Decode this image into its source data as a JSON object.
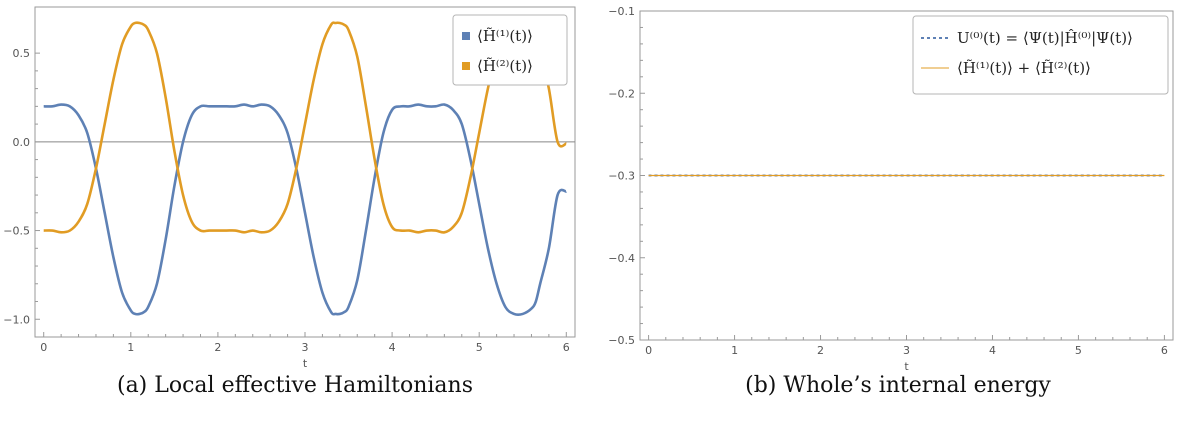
{
  "colors": {
    "series1": "#5E81B5",
    "series2": "#E19C24",
    "frame": "#9a9a9a",
    "zero": "#888888"
  },
  "chart_data": [
    {
      "type": "line",
      "caption": "(a) Local effective Hamiltonians",
      "xlabel": "t",
      "ylabel": "",
      "xlim": [
        -0.1,
        6.1
      ],
      "ylim": [
        -1.1,
        0.76
      ],
      "xticks": [
        0,
        1,
        2,
        3,
        4,
        5,
        6
      ],
      "xtick_labels": [
        "0",
        "1",
        "2",
        "3",
        "4",
        "5",
        "6"
      ],
      "yticks": [
        -1.0,
        -0.5,
        0.0,
        0.5
      ],
      "ytick_labels": [
        "−1.0",
        "−0.5",
        "0.0",
        "0.5"
      ],
      "zero_line": true,
      "legend_position": "top-right",
      "legend_style": "swatch",
      "series": [
        {
          "name": "⟨H̃⁽¹⁾(t)⟩",
          "color": "#5E81B5",
          "x": [
            0,
            0.1,
            0.2,
            0.3,
            0.4,
            0.5,
            0.6,
            0.7,
            0.8,
            0.9,
            1.0,
            1.05,
            1.1,
            1.15,
            1.2,
            1.3,
            1.4,
            1.5,
            1.6,
            1.7,
            1.8,
            1.9,
            2.0,
            2.1,
            2.2,
            2.3,
            2.4,
            2.5,
            2.6,
            2.7,
            2.8,
            2.9,
            3.0,
            3.1,
            3.2,
            3.3,
            3.35,
            3.4,
            3.45,
            3.5,
            3.6,
            3.7,
            3.8,
            3.9,
            4.0,
            4.1,
            4.2,
            4.3,
            4.4,
            4.5,
            4.6,
            4.7,
            4.8,
            4.9,
            5.0,
            5.1,
            5.2,
            5.3,
            5.4,
            5.5,
            5.6,
            5.65,
            5.7,
            5.8,
            5.9,
            6.0
          ],
          "y": [
            0.2,
            0.2,
            0.21,
            0.2,
            0.15,
            0.05,
            -0.15,
            -0.4,
            -0.65,
            -0.85,
            -0.95,
            -0.97,
            -0.97,
            -0.96,
            -0.93,
            -0.8,
            -0.55,
            -0.25,
            0.0,
            0.15,
            0.2,
            0.2,
            0.2,
            0.2,
            0.2,
            0.21,
            0.2,
            0.21,
            0.2,
            0.15,
            0.05,
            -0.15,
            -0.4,
            -0.65,
            -0.85,
            -0.96,
            -0.97,
            -0.97,
            -0.96,
            -0.93,
            -0.78,
            -0.5,
            -0.2,
            0.05,
            0.18,
            0.2,
            0.2,
            0.21,
            0.2,
            0.2,
            0.21,
            0.18,
            0.1,
            -0.1,
            -0.35,
            -0.6,
            -0.8,
            -0.93,
            -0.97,
            -0.97,
            -0.94,
            -0.9,
            -0.8,
            -0.6,
            -0.3,
            -0.28
          ]
        },
        {
          "name": "⟨H̃⁽²⁾(t)⟩",
          "color": "#E19C24",
          "x": [
            0,
            0.1,
            0.2,
            0.3,
            0.4,
            0.5,
            0.6,
            0.7,
            0.8,
            0.9,
            1.0,
            1.05,
            1.1,
            1.15,
            1.2,
            1.3,
            1.4,
            1.5,
            1.6,
            1.7,
            1.8,
            1.9,
            2.0,
            2.1,
            2.2,
            2.3,
            2.4,
            2.5,
            2.6,
            2.7,
            2.8,
            2.9,
            3.0,
            3.1,
            3.2,
            3.3,
            3.35,
            3.4,
            3.45,
            3.5,
            3.6,
            3.7,
            3.8,
            3.9,
            4.0,
            4.1,
            4.2,
            4.3,
            4.4,
            4.5,
            4.6,
            4.7,
            4.8,
            4.9,
            5.0,
            5.1,
            5.2,
            5.3,
            5.4,
            5.5,
            5.6,
            5.65,
            5.7,
            5.8,
            5.9,
            6.0
          ],
          "y": [
            -0.5,
            -0.5,
            -0.51,
            -0.5,
            -0.45,
            -0.35,
            -0.15,
            0.1,
            0.35,
            0.55,
            0.65,
            0.67,
            0.67,
            0.66,
            0.63,
            0.5,
            0.25,
            -0.05,
            -0.3,
            -0.45,
            -0.5,
            -0.5,
            -0.5,
            -0.5,
            -0.5,
            -0.51,
            -0.5,
            -0.51,
            -0.5,
            -0.45,
            -0.35,
            -0.15,
            0.1,
            0.35,
            0.55,
            0.66,
            0.67,
            0.67,
            0.66,
            0.63,
            0.48,
            0.2,
            -0.1,
            -0.35,
            -0.48,
            -0.5,
            -0.5,
            -0.51,
            -0.5,
            -0.5,
            -0.51,
            -0.48,
            -0.4,
            -0.2,
            0.05,
            0.3,
            0.5,
            0.63,
            0.67,
            0.67,
            0.64,
            0.6,
            0.5,
            0.3,
            0.0,
            -0.01
          ]
        }
      ]
    },
    {
      "type": "line",
      "caption": "(b) Whole’s internal energy",
      "xlabel": "t",
      "ylabel": "",
      "xlim": [
        -0.1,
        6.1
      ],
      "ylim": [
        -0.5,
        -0.1
      ],
      "xticks": [
        0,
        1,
        2,
        3,
        4,
        5,
        6
      ],
      "xtick_labels": [
        "0",
        "1",
        "2",
        "3",
        "4",
        "5",
        "6"
      ],
      "yticks": [
        -0.5,
        -0.4,
        -0.3,
        -0.2,
        -0.1
      ],
      "ytick_labels": [
        "−0.5",
        "−0.4",
        "−0.3",
        "−0.2",
        "−0.1"
      ],
      "zero_line": false,
      "legend_position": "top-right",
      "legend_style": "line",
      "series": [
        {
          "name": "U⁽⁰⁾(t) = ⟨Ψ(t)|Ĥ⁽⁰⁾|Ψ(t)⟩",
          "color": "#5E81B5",
          "dashed": true,
          "x": [
            0,
            6
          ],
          "y": [
            -0.3,
            -0.3
          ]
        },
        {
          "name": "⟨H̃⁽¹⁾(t)⟩ + ⟨H̃⁽²⁾(t)⟩",
          "color": "#E19C24",
          "dashed": false,
          "x": [
            0,
            6
          ],
          "y": [
            -0.3,
            -0.3
          ]
        }
      ]
    }
  ]
}
